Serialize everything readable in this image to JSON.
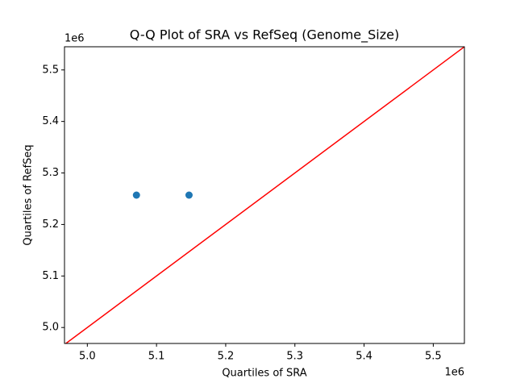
{
  "chart_data": {
    "type": "scatter",
    "title": "Q-Q Plot of SRA vs RefSeq (Genome_Size)",
    "x_label": "Quartiles of SRA",
    "y_label": "Quartiles of RefSeq",
    "x_offset_label": "1e6",
    "y_offset_label": "1e6",
    "x": [
      5.071,
      5.147
    ],
    "values": [
      5.257,
      5.257
    ],
    "color": "#1f77b4",
    "reference_line": {
      "x": [
        4.967,
        5.545
      ],
      "y": [
        4.967,
        5.545
      ],
      "color": "#ff0000"
    },
    "xlim": [
      4.967,
      5.545
    ],
    "ylim": [
      4.969,
      5.545
    ],
    "xticks": [
      {
        "value": 5,
        "label": "5.0"
      },
      {
        "value": 5.1,
        "label": "5.1"
      },
      {
        "value": 5.2,
        "label": "5.2"
      },
      {
        "value": 5.3,
        "label": "5.3"
      },
      {
        "value": 5.4,
        "label": "5.4"
      },
      {
        "value": 5.5,
        "label": "5.5"
      }
    ],
    "yticks": [
      {
        "value": 5,
        "label": "5.0"
      },
      {
        "value": 5.1,
        "label": "5.1"
      },
      {
        "value": 5.2,
        "label": "5.2"
      },
      {
        "value": 5.3,
        "label": "5.3"
      },
      {
        "value": 5.4,
        "label": "5.4"
      },
      {
        "value": 5.5,
        "label": "5.5"
      }
    ]
  }
}
